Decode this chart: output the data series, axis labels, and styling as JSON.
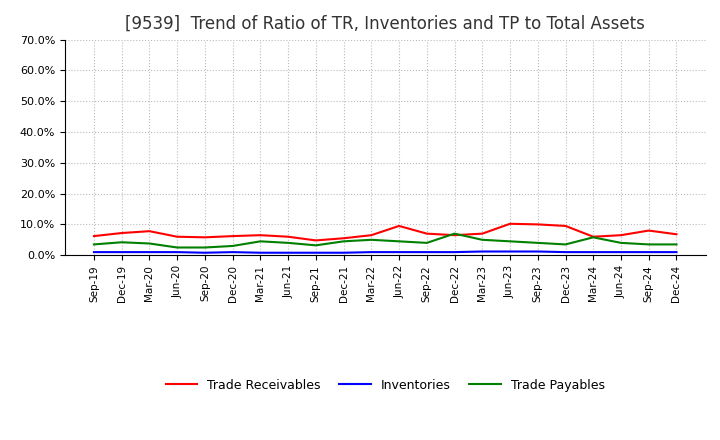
{
  "title": "[9539]  Trend of Ratio of TR, Inventories and TP to Total Assets",
  "x_labels": [
    "Sep-19",
    "Dec-19",
    "Mar-20",
    "Jun-20",
    "Sep-20",
    "Dec-20",
    "Mar-21",
    "Jun-21",
    "Sep-21",
    "Dec-21",
    "Mar-22",
    "Jun-22",
    "Sep-22",
    "Dec-22",
    "Mar-23",
    "Jun-23",
    "Sep-23",
    "Dec-23",
    "Mar-24",
    "Jun-24",
    "Sep-24",
    "Dec-24"
  ],
  "trade_receivables": [
    6.2,
    7.2,
    7.8,
    6.0,
    5.8,
    6.2,
    6.5,
    6.0,
    4.8,
    5.5,
    6.5,
    9.5,
    7.0,
    6.5,
    7.0,
    10.2,
    10.0,
    9.5,
    6.0,
    6.5,
    8.0,
    6.8
  ],
  "inventories": [
    1.0,
    1.0,
    1.0,
    1.0,
    0.8,
    1.0,
    0.8,
    0.8,
    0.8,
    0.8,
    1.0,
    1.0,
    1.0,
    1.0,
    1.2,
    1.2,
    1.2,
    1.0,
    1.0,
    1.0,
    1.0,
    1.0
  ],
  "trade_payables": [
    3.5,
    4.2,
    3.8,
    2.5,
    2.5,
    3.0,
    4.5,
    4.0,
    3.2,
    4.5,
    5.0,
    4.5,
    4.0,
    7.0,
    5.0,
    4.5,
    4.0,
    3.5,
    5.8,
    4.0,
    3.5,
    3.5
  ],
  "tr_color": "#FF0000",
  "inv_color": "#0000FF",
  "tp_color": "#008000",
  "ylim": [
    0,
    70
  ],
  "yticks": [
    0,
    10,
    20,
    30,
    40,
    50,
    60,
    70
  ],
  "background_color": "#FFFFFF",
  "grid_color": "#BBBBBB",
  "title_fontsize": 12,
  "legend_labels": [
    "Trade Receivables",
    "Inventories",
    "Trade Payables"
  ]
}
